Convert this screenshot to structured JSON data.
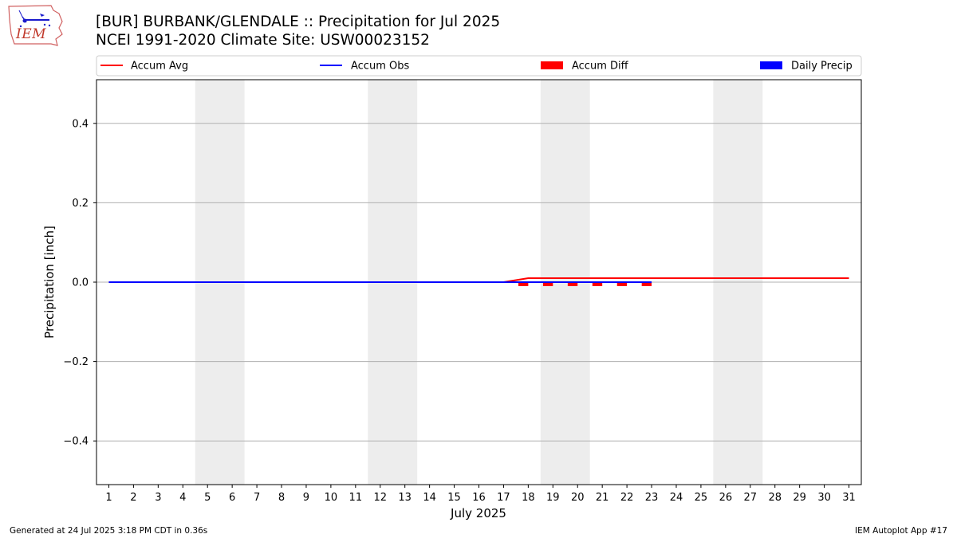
{
  "header": {
    "title_line1": "[BUR] BURBANK/GLENDALE :: Precipitation for Jul 2025",
    "title_line2": "NCEI 1991-2020 Climate Site: USW00023152",
    "logo_text": "IEM"
  },
  "footer": {
    "generated": "Generated at 24 Jul 2025 3:18 PM CDT in 0.36s",
    "app": "IEM Autoplot App #17"
  },
  "colors": {
    "accum_avg": "#ff0000",
    "accum_obs": "#0000ff",
    "accum_diff": "#ff0000",
    "daily_precip": "#0000ff",
    "weekend_shade": "#ededed",
    "grid": "#b0b0b0"
  },
  "chart_data": {
    "type": "line",
    "xlabel": "July 2025",
    "ylabel": "Precipitation [inch]",
    "xlim": [
      0.5,
      31.5
    ],
    "ylim": [
      -0.51,
      0.51
    ],
    "x_ticks": [
      1,
      2,
      3,
      4,
      5,
      6,
      7,
      8,
      9,
      10,
      11,
      12,
      13,
      14,
      15,
      16,
      17,
      18,
      19,
      20,
      21,
      22,
      23,
      24,
      25,
      26,
      27,
      28,
      29,
      30,
      31
    ],
    "y_ticks": [
      -0.4,
      -0.2,
      0.0,
      0.2,
      0.4
    ],
    "y_tick_labels": [
      "−0.4",
      "−0.2",
      "0.0",
      "0.2",
      "0.4"
    ],
    "grid": "horizontal",
    "legend_position": "top",
    "legend": [
      "Accum Avg",
      "Accum Obs",
      "Accum Diff",
      "Daily Precip"
    ],
    "weekend_shading": [
      [
        4.5,
        6.5
      ],
      [
        11.5,
        13.5
      ],
      [
        18.5,
        20.5
      ],
      [
        25.5,
        27.5
      ]
    ],
    "accum_avg": {
      "name": "Accum Avg",
      "x": [
        1,
        2,
        3,
        4,
        5,
        6,
        7,
        8,
        9,
        10,
        11,
        12,
        13,
        14,
        15,
        16,
        17,
        18,
        19,
        20,
        21,
        22,
        23,
        24,
        25,
        26,
        27,
        28,
        29,
        30,
        31
      ],
      "values": [
        0,
        0,
        0,
        0,
        0,
        0,
        0,
        0,
        0,
        0,
        0,
        0,
        0,
        0,
        0,
        0,
        0,
        0.01,
        0.01,
        0.01,
        0.01,
        0.01,
        0.01,
        0.01,
        0.01,
        0.01,
        0.01,
        0.01,
        0.01,
        0.01,
        0.01
      ]
    },
    "accum_obs": {
      "name": "Accum Obs",
      "x": [
        1,
        2,
        3,
        4,
        5,
        6,
        7,
        8,
        9,
        10,
        11,
        12,
        13,
        14,
        15,
        16,
        17,
        18,
        19,
        20,
        21,
        22,
        23
      ],
      "values": [
        0,
        0,
        0,
        0,
        0,
        0,
        0,
        0,
        0,
        0,
        0,
        0,
        0,
        0,
        0,
        0,
        0,
        0,
        0,
        0,
        0,
        0,
        0
      ]
    },
    "accum_diff": {
      "name": "Accum Diff",
      "x": [
        18,
        19,
        20,
        21,
        22,
        23
      ],
      "values": [
        -0.01,
        -0.01,
        -0.01,
        -0.01,
        -0.01,
        -0.01
      ]
    },
    "daily_precip": {
      "name": "Daily Precip",
      "x": [],
      "values": []
    }
  }
}
